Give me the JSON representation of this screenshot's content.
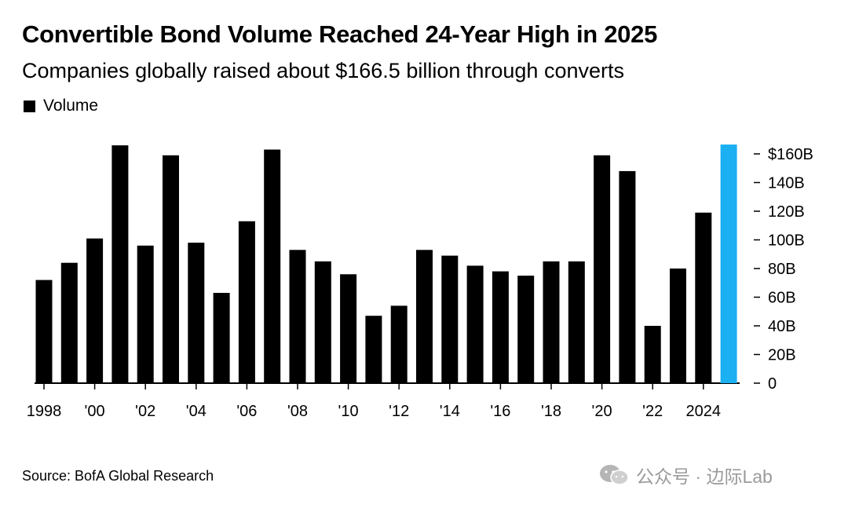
{
  "chart_data": {
    "type": "bar",
    "title": "Convertible Bond Volume Reached 24-Year High in 2025",
    "subtitle": "Companies globally raised about $166.5 billion through converts",
    "legend": [
      "Volume"
    ],
    "legend_position": "top-left",
    "categories": [
      "1998",
      "1999",
      "2000",
      "2001",
      "2002",
      "2003",
      "2004",
      "2005",
      "2006",
      "2007",
      "2008",
      "2009",
      "2010",
      "2011",
      "2012",
      "2013",
      "2014",
      "2015",
      "2016",
      "2017",
      "2018",
      "2019",
      "2020",
      "2021",
      "2022",
      "2023",
      "2024",
      "2025"
    ],
    "x_tick_labels": [
      "1998",
      "'00",
      "'02",
      "'04",
      "'06",
      "'08",
      "'10",
      "'12",
      "'14",
      "'16",
      "'18",
      "'20",
      "'22",
      "2024"
    ],
    "series": [
      {
        "name": "Volume",
        "values": [
          72,
          84,
          101,
          166,
          96,
          159,
          98,
          63,
          113,
          163,
          93,
          85,
          76,
          47,
          54,
          93,
          89,
          82,
          78,
          75,
          85,
          85,
          159,
          148,
          40,
          80,
          119,
          166.5
        ]
      }
    ],
    "highlight_category": "2025",
    "colors": {
      "bar": "#000000",
      "highlight": "#1ab0f2",
      "text": "#000000"
    },
    "y_ticks": [
      0,
      20,
      40,
      60,
      80,
      100,
      120,
      140,
      160
    ],
    "y_tick_labels": [
      "0",
      "20B",
      "40B",
      "60B",
      "80B",
      "100B",
      "120B",
      "140B",
      "$160B"
    ],
    "ylim": [
      0,
      170
    ],
    "y_axis_side": "right",
    "source": "Source: BofA Global Research"
  },
  "watermark": {
    "text": "公众号 · 边际Lab"
  }
}
